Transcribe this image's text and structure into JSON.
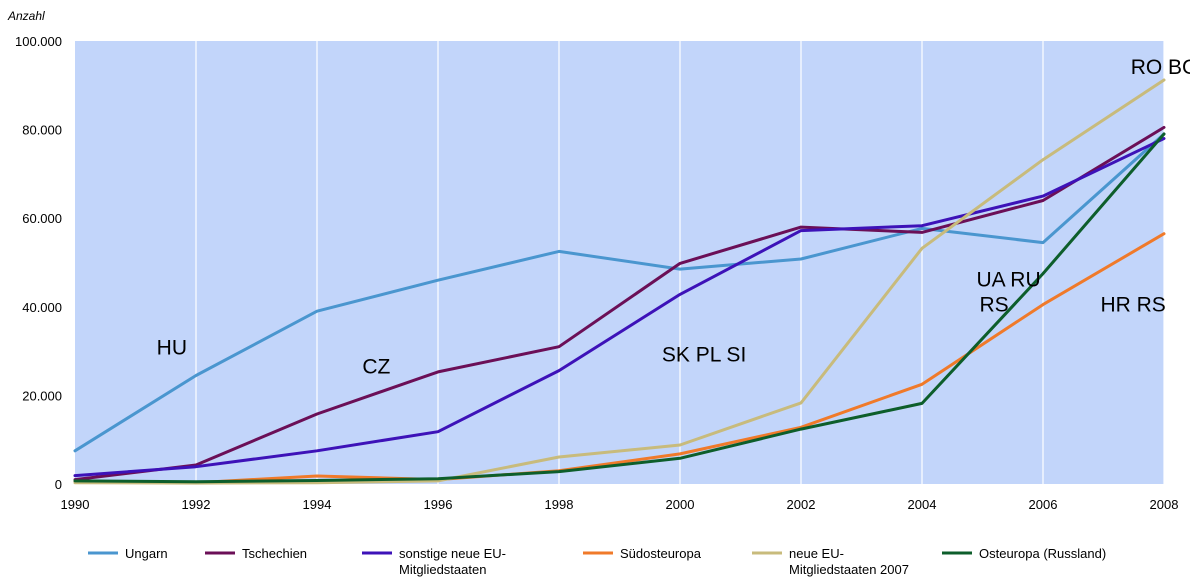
{
  "chart_data": {
    "type": "line",
    "ylabel": "Anzahl",
    "xlabel": "",
    "title": "",
    "x": [
      1990,
      1992,
      1994,
      1996,
      1998,
      2000,
      2002,
      2004,
      2006,
      2008
    ],
    "x_tick_labels": [
      "1990",
      "1992",
      "1994",
      "1996",
      "1998",
      "2000",
      "2002",
      "2004",
      "2006",
      "2008"
    ],
    "ylim": [
      0,
      100000
    ],
    "y_ticks": [
      0,
      20000,
      40000,
      60000,
      80000,
      100000
    ],
    "y_tick_labels": [
      "0",
      "20.000",
      "40.000",
      "60.000",
      "80.000",
      "100.000"
    ],
    "grid": "vertical",
    "plot_background": "#c2d5fa",
    "series": [
      {
        "name": "Ungarn",
        "color": "#4a96cf",
        "values": [
          7500,
          24500,
          39000,
          46000,
          52500,
          48500,
          50800,
          57700,
          54500,
          79000
        ]
      },
      {
        "name": "Tschechien",
        "color": "#6b0f57",
        "values": [
          1000,
          4300,
          15800,
          25300,
          31000,
          49800,
          58000,
          56800,
          64000,
          80500
        ]
      },
      {
        "name": "sonstige neue EU-Mitgliedstaaten",
        "legend_lines": [
          "sonstige neue EU-",
          "Mitgliedstaaten"
        ],
        "color": "#3d12b8",
        "values": [
          1900,
          3900,
          7500,
          11800,
          25600,
          42800,
          57200,
          58300,
          65000,
          78000
        ]
      },
      {
        "name": "Südosteuropa",
        "color": "#f07a2a",
        "values": [
          500,
          300,
          1800,
          1000,
          3000,
          6800,
          12800,
          22500,
          40500,
          56500
        ]
      },
      {
        "name": "neue EU-Mitgliedstaaten 2007",
        "legend_lines": [
          "neue EU-",
          "Mitgliedstaaten 2007"
        ],
        "color": "#c8bb7c",
        "values": [
          300,
          200,
          300,
          700,
          6100,
          8800,
          18300,
          53200,
          73200,
          91200
        ]
      },
      {
        "name": "Osteuropa (Russland)",
        "color": "#0d5e2b",
        "values": [
          700,
          500,
          800,
          1200,
          2800,
          5800,
          12400,
          18200,
          47500,
          79000
        ]
      }
    ],
    "annotations": [
      {
        "text": "HU",
        "x": 1991.35,
        "y": 29200
      },
      {
        "text": "CZ",
        "x": 1994.75,
        "y": 24900
      },
      {
        "text": "SK PL SI",
        "x": 1999.7,
        "y": 27600
      },
      {
        "text": "UA RU",
        "x": 2004.9,
        "y": 44600
      },
      {
        "text": "RS",
        "x": 2004.95,
        "y": 38900
      },
      {
        "text": "HR RS",
        "x": 2006.95,
        "y": 38900
      },
      {
        "text": "RO BG",
        "x": 2007.45,
        "y": 92500
      }
    ],
    "legend_position": "bottom"
  }
}
